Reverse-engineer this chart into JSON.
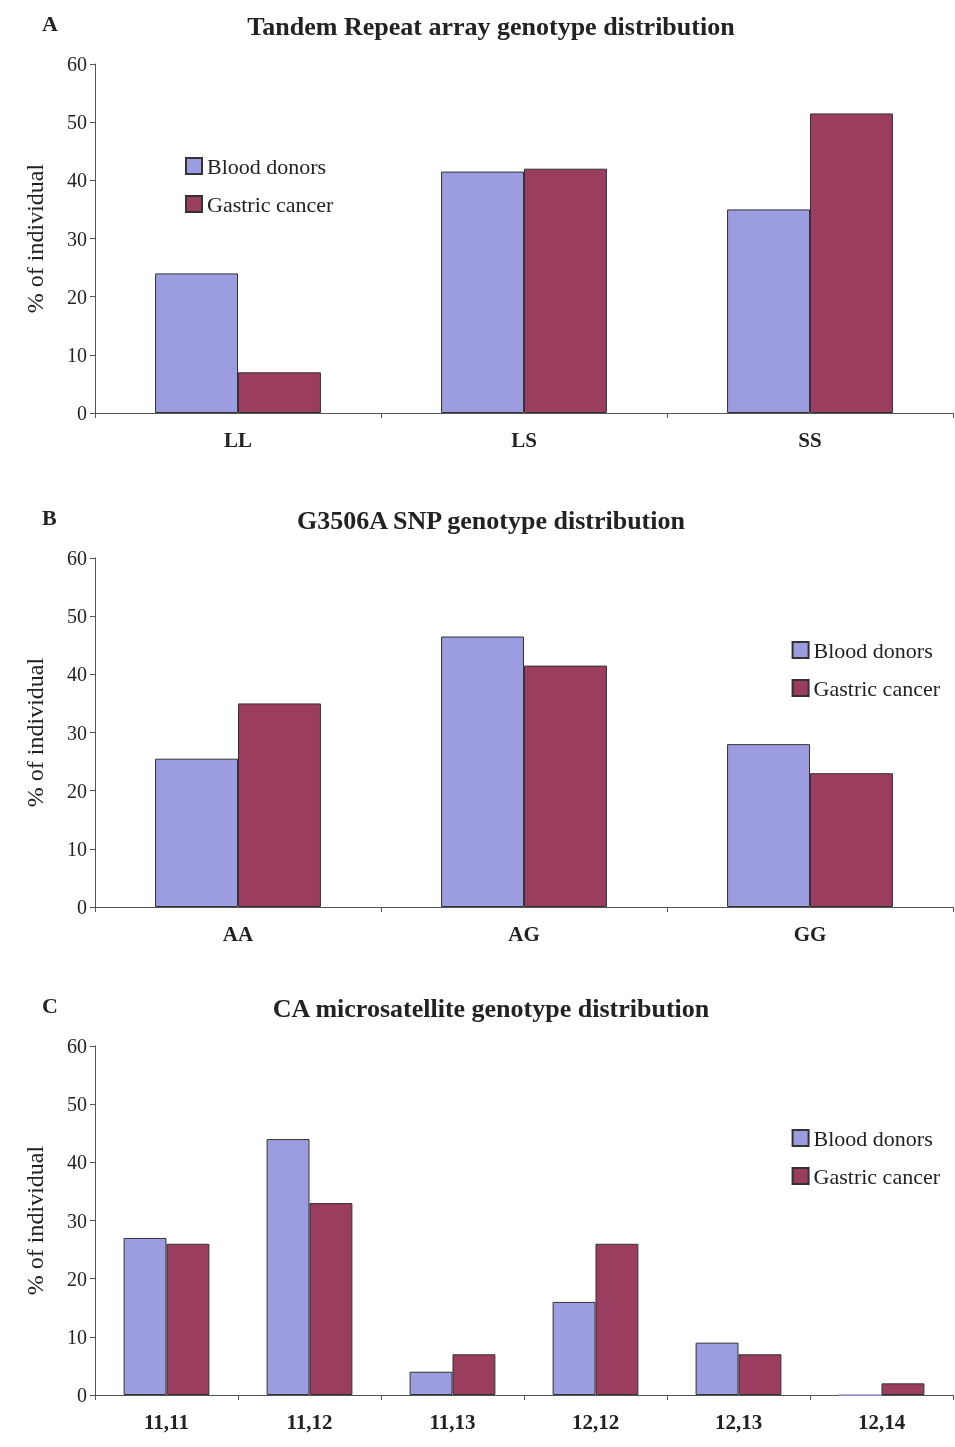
{
  "chart_data": [
    {
      "type": "bar",
      "title": "Tandem Repeat array genotype distribution",
      "annotations": [
        "A"
      ],
      "ylabel": "% of individual",
      "categories": [
        "LL",
        "LS",
        "SS"
      ],
      "series": [
        {
          "name": "Blood donors",
          "color": "#9c9ce0",
          "values": [
            24,
            41.5,
            35
          ]
        },
        {
          "name": "Gastric cancer",
          "color": "#9b3d5e",
          "values": [
            7,
            42,
            51.5
          ]
        }
      ],
      "ylim": [
        0,
        60
      ],
      "yticks": [
        0,
        10,
        20,
        30,
        40,
        50,
        60
      ],
      "grid": false,
      "legend": "top left"
    },
    {
      "type": "bar",
      "title": "G3506A SNP genotype distribution",
      "annotations": [
        "B"
      ],
      "ylabel": "% of individual",
      "categories": [
        "AA",
        "AG",
        "GG"
      ],
      "series": [
        {
          "name": "Blood donors",
          "color": "#9c9ce0",
          "values": [
            25.5,
            46.5,
            28
          ]
        },
        {
          "name": "Gastric cancer",
          "color": "#9b3d5e",
          "values": [
            35,
            41.5,
            23
          ]
        }
      ],
      "ylim": [
        0,
        60
      ],
      "yticks": [
        0,
        10,
        20,
        30,
        40,
        50,
        60
      ],
      "grid": false,
      "legend": "top right"
    },
    {
      "type": "bar",
      "title": "CA microsatellite genotype distribution",
      "annotations": [
        "C"
      ],
      "ylabel": "% of individual",
      "categories": [
        "11,11",
        "11,12",
        "11,13",
        "12,12",
        "12,13",
        "12,14"
      ],
      "series": [
        {
          "name": "Blood donors",
          "color": "#9c9ce0",
          "values": [
            27,
            44,
            4,
            16,
            9,
            0
          ]
        },
        {
          "name": "Gastric cancer",
          "color": "#9b3d5e",
          "values": [
            26,
            33,
            7,
            26,
            7,
            2
          ]
        }
      ],
      "ylim": [
        0,
        60
      ],
      "yticks": [
        0,
        10,
        20,
        30,
        40,
        50,
        60
      ],
      "grid": false,
      "legend": "top right"
    }
  ]
}
